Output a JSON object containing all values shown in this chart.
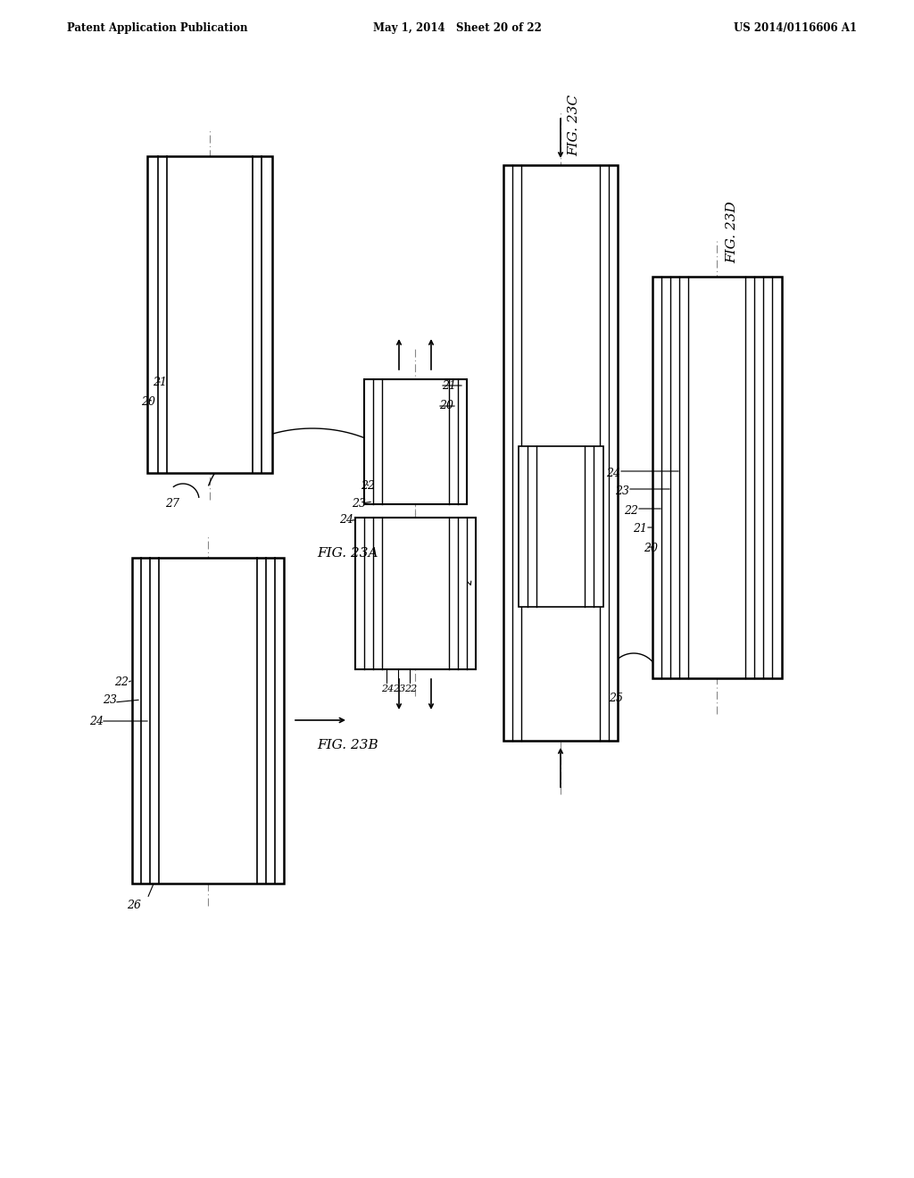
{
  "bg_color": "#ffffff",
  "header_left": "Patent Application Publication",
  "header_mid": "May 1, 2014   Sheet 20 of 22",
  "header_right": "US 2014/0116606 A1",
  "line_color": "#000000",
  "centerline_color": "#888888"
}
